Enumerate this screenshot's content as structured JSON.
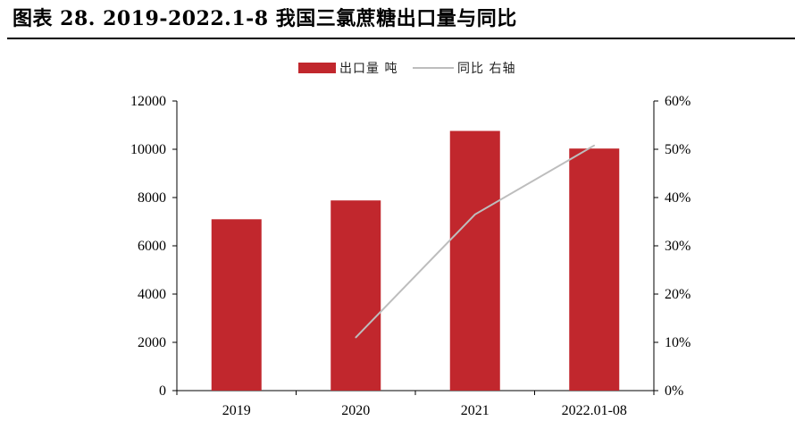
{
  "title": "图表 28. 2019-2022.1-8 我国三氯蔗糖出口量与同比",
  "colors": {
    "bar": "#C1272D",
    "line": "#BDBDBD",
    "axis": "#000000"
  },
  "chart_data": {
    "type": "bar",
    "categories": [
      "2019",
      "2020",
      "2021",
      "2022.01-08"
    ],
    "series": [
      {
        "name": "出口量 吨",
        "kind": "bar",
        "axis": "left",
        "values": [
          7100,
          7880,
          10760,
          10030
        ]
      },
      {
        "name": "同比 右轴",
        "kind": "line",
        "axis": "right",
        "values": [
          null,
          11.0,
          36.5,
          50.8
        ]
      }
    ],
    "y_left": {
      "min": 0,
      "max": 12000,
      "ticks": [
        "0",
        "2000",
        "4000",
        "6000",
        "8000",
        "10000",
        "12000"
      ]
    },
    "y_right": {
      "min": 0,
      "max": 60,
      "ticks": [
        "0%",
        "10%",
        "20%",
        "30%",
        "40%",
        "50%",
        "60%"
      ]
    },
    "legend": {
      "position": "top-center",
      "items": [
        "出口量 吨",
        "同比 右轴"
      ]
    },
    "grid": false
  }
}
